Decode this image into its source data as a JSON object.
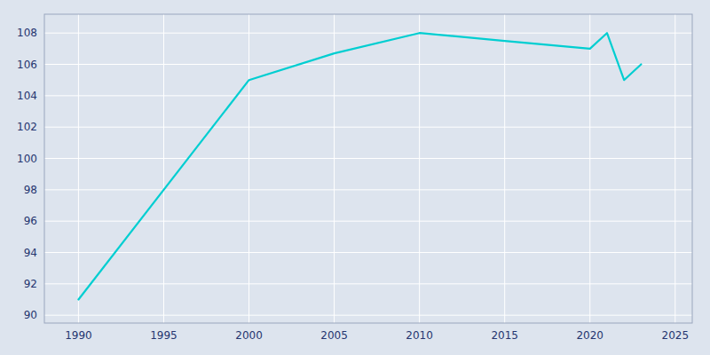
{
  "chart_data": {
    "type": "line",
    "x": [
      1990,
      2000,
      2005,
      2010,
      2015,
      2020,
      2021,
      2022,
      2023
    ],
    "values": [
      91,
      105,
      106.7,
      108,
      107.5,
      107,
      108,
      105,
      106
    ],
    "color": "#00CED1",
    "xlim": [
      1988,
      2026
    ],
    "ylim": [
      89.5,
      109.2
    ],
    "xticks": [
      1990,
      1995,
      2000,
      2005,
      2010,
      2015,
      2020,
      2025
    ],
    "yticks": [
      90,
      92,
      94,
      96,
      98,
      100,
      102,
      104,
      106,
      108
    ],
    "grid": true
  }
}
